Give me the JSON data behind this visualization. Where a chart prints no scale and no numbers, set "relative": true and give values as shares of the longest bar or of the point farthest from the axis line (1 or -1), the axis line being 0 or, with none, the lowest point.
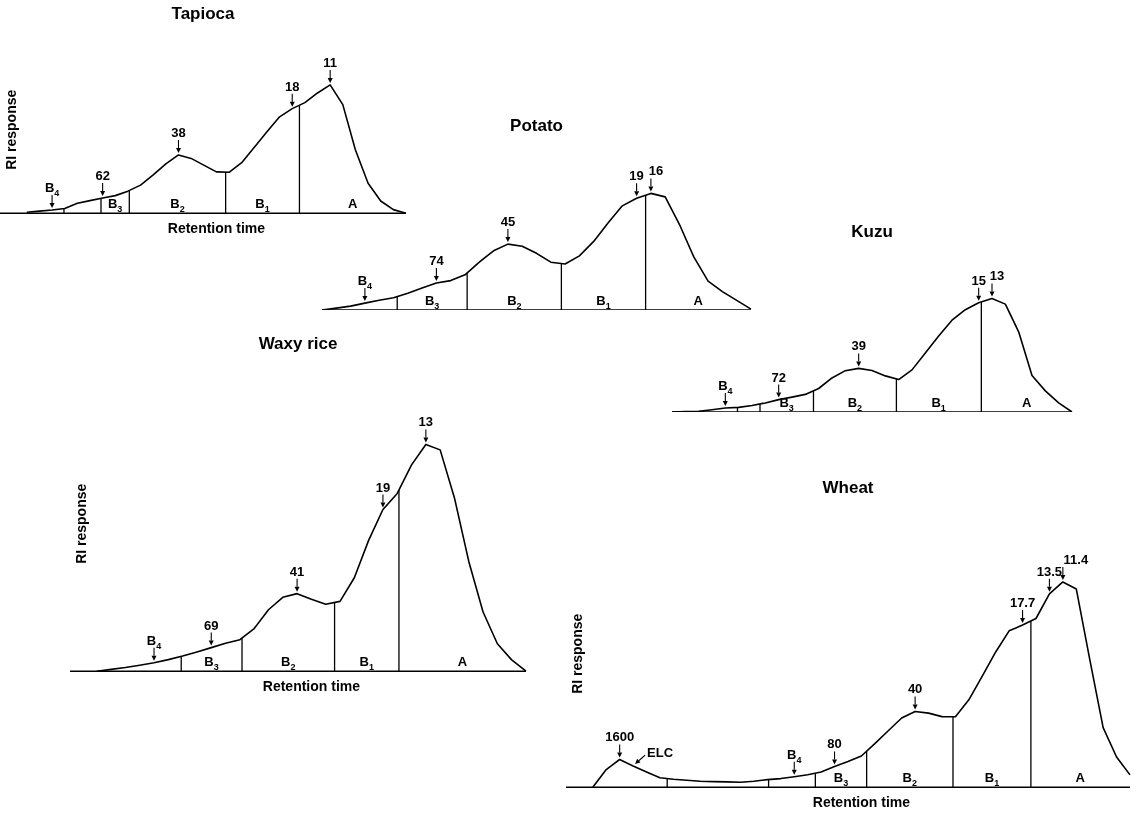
{
  "chart_data": [
    {
      "type": "line",
      "title": "Tapioca",
      "xlabel": "Retention time",
      "ylabel": "RI response",
      "relative": true,
      "tick_labels": false,
      "color": "#000000",
      "categories": [
        null,
        null,
        null,
        null,
        null,
        null,
        null,
        null,
        null,
        null,
        null,
        null,
        null,
        null,
        null,
        null,
        null,
        null,
        null,
        null,
        null,
        null,
        null,
        null,
        null,
        null,
        null,
        null,
        null,
        null,
        null
      ],
      "values": [
        0.007,
        0.016,
        0.025,
        0.037,
        0.077,
        0.098,
        0.118,
        0.137,
        0.172,
        0.219,
        0.299,
        0.385,
        0.454,
        0.427,
        0.375,
        0.322,
        0.319,
        0.394,
        0.514,
        0.635,
        0.751,
        0.815,
        0.862,
        0.937,
        1,
        0.846,
        0.493,
        0.234,
        0.095,
        0.028,
        0
      ],
      "annotations": [
        "B$_{4}$",
        "62",
        "38",
        "18",
        "11",
        "B$_{3}$",
        "B$_{2}$",
        "B$_{1}$",
        "A"
      ]
    },
    {
      "type": "line",
      "title": "Potato",
      "relative": true,
      "tick_labels": false,
      "color": "#000000",
      "categories": [
        null,
        null,
        null,
        null,
        null,
        null,
        null,
        null,
        null,
        null,
        null,
        null,
        null,
        null,
        null,
        null,
        null,
        null,
        null,
        null,
        null,
        null,
        null,
        null,
        null,
        null,
        null,
        null,
        null,
        null,
        null
      ],
      "values": [
        0,
        0.016,
        0.033,
        0.059,
        0.083,
        0.105,
        0.144,
        0.188,
        0.232,
        0.252,
        0.302,
        0.411,
        0.508,
        0.565,
        0.546,
        0.486,
        0.41,
        0.394,
        0.464,
        0.588,
        0.746,
        0.893,
        0.958,
        1,
        0.97,
        0.733,
        0.455,
        0.248,
        0.158,
        0.083,
        0.008
      ],
      "annotations": [
        "B$_{4}$",
        "74",
        "45",
        "19",
        "16",
        "B$_{3}$",
        "B$_{2}$",
        "B$_{1}$",
        "A"
      ]
    },
    {
      "type": "line",
      "title": "Kuzu",
      "relative": true,
      "tick_labels": false,
      "color": "#000000",
      "categories": [
        null,
        null,
        null,
        null,
        null,
        null,
        null,
        null,
        null,
        null,
        null,
        null,
        null,
        null,
        null,
        null,
        null,
        null,
        null,
        null,
        null,
        null,
        null,
        null,
        null,
        null,
        null,
        null,
        null,
        null,
        null
      ],
      "values": [
        0,
        0.003,
        0.006,
        0.02,
        0.035,
        0.041,
        0.057,
        0.08,
        0.109,
        0.131,
        0.155,
        0.207,
        0.3,
        0.364,
        0.384,
        0.366,
        0.318,
        0.286,
        0.371,
        0.52,
        0.669,
        0.809,
        0.901,
        0.962,
        1,
        0.95,
        0.706,
        0.321,
        0.186,
        0.08,
        0
      ],
      "annotations": [
        "B$_{4}$",
        "72",
        "39",
        "15",
        "13",
        "B$_{3}$",
        "B$_{2}$",
        "B$_{1}$",
        "A"
      ]
    },
    {
      "type": "line",
      "title": "Waxy rice",
      "xlabel": "Retention time",
      "ylabel": "RI response",
      "relative": true,
      "tick_labels": false,
      "color": "#000000",
      "categories": [
        null,
        null,
        null,
        null,
        null,
        null,
        null,
        null,
        null,
        null,
        null,
        null,
        null,
        null,
        null,
        null,
        null,
        null,
        null,
        null,
        null,
        null,
        null,
        null,
        null,
        null,
        null,
        null,
        null,
        null,
        null
      ],
      "values": [
        0,
        0.008,
        0.016,
        0.026,
        0.037,
        0.051,
        0.067,
        0.085,
        0.104,
        0.123,
        0.139,
        0.188,
        0.271,
        0.326,
        0.342,
        0.317,
        0.295,
        0.308,
        0.412,
        0.577,
        0.713,
        0.784,
        0.91,
        1,
        0.976,
        0.764,
        0.484,
        0.261,
        0.121,
        0.05,
        0
      ],
      "annotations": [
        "B$_{4}$",
        "69",
        "41",
        "19",
        "13",
        "B$_{3}$",
        "B$_{2}$",
        "B$_{1}$",
        "A"
      ]
    },
    {
      "type": "line",
      "title": "Wheat",
      "xlabel": "Retention time",
      "ylabel": "RI response",
      "relative": true,
      "tick_labels": false,
      "color": "#000000",
      "categories": [
        null,
        null,
        null,
        null,
        null,
        null,
        null,
        null,
        null,
        null,
        null,
        null,
        null,
        null,
        null,
        null,
        null,
        null,
        null,
        null,
        null,
        null,
        null,
        null,
        null,
        null,
        null,
        null,
        null,
        null,
        null,
        null,
        null,
        null,
        null,
        null,
        null,
        null,
        null,
        null,
        null
      ],
      "values": [
        0,
        0.086,
        0.135,
        0.103,
        0.074,
        0.046,
        0.039,
        0.034,
        0.029,
        0.027,
        0.026,
        0.024,
        0.029,
        0.037,
        0.042,
        0.051,
        0.061,
        0.074,
        0.101,
        0.125,
        0.152,
        0.212,
        0.275,
        0.337,
        0.369,
        0.361,
        0.344,
        0.343,
        0.426,
        0.541,
        0.659,
        0.762,
        0.79,
        0.822,
        0.942,
        1,
        0.966,
        0.624,
        0.29,
        0.147,
        0.06
      ],
      "annotations": [
        "1600",
        "ELC",
        "B$_{4}$",
        "80",
        "40",
        "17.7",
        "13.5",
        "11.4",
        "B$_{3}$",
        "B$_{2}$",
        "B$_{1}$",
        "A"
      ]
    }
  ]
}
